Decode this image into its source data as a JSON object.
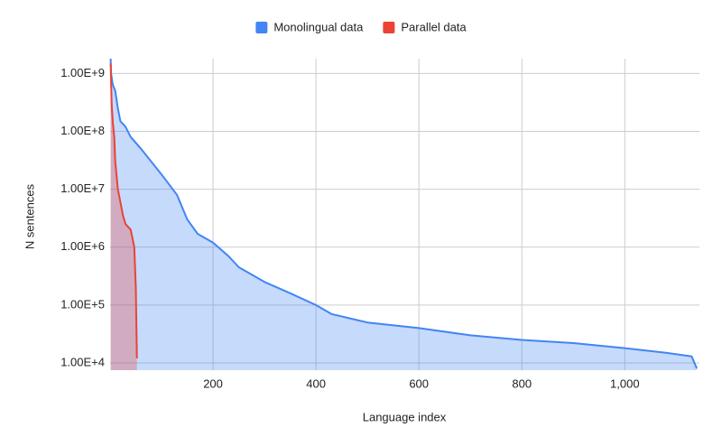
{
  "chart_data": {
    "type": "area",
    "log_scale_y": true,
    "grid": true,
    "legend_position": "top",
    "x_label": "Language index",
    "y_label": "N sentences",
    "xlim": [
      0,
      1145
    ],
    "xticks": [
      200,
      400,
      600,
      800,
      {
        "value": 1000,
        "label": "1,000"
      }
    ],
    "ylim": [
      7500,
      1800000000
    ],
    "yticks": [
      {
        "value": 10000,
        "label": "1.00E+4"
      },
      {
        "value": 100000,
        "label": "1.00E+5"
      },
      {
        "value": 1000000,
        "label": "1.00E+6"
      },
      {
        "value": 10000000,
        "label": "1.00E+7"
      },
      {
        "value": 100000000,
        "label": "1.00E+8"
      },
      {
        "value": 1000000000,
        "label": "1.00E+9"
      }
    ],
    "series": [
      {
        "name": "Monolingual data",
        "color": "#4285f4",
        "x": [
          1,
          2,
          5,
          10,
          15,
          20,
          30,
          40,
          60,
          80,
          100,
          130,
          150,
          170,
          200,
          230,
          250,
          300,
          350,
          400,
          430,
          500,
          600,
          700,
          800,
          900,
          1000,
          1080,
          1130,
          1140
        ],
        "values": [
          1800000000,
          1000000000,
          650000000,
          500000000,
          250000000,
          150000000,
          120000000,
          80000000,
          50000000,
          30000000,
          18000000,
          8000000,
          3000000,
          1700000,
          1200000,
          700000,
          450000,
          250000,
          160000,
          100000,
          70000,
          50000,
          40000,
          30000,
          25000,
          22000,
          18000,
          15000,
          13000,
          8000
        ]
      },
      {
        "name": "Parallel data",
        "color": "#ea4335",
        "x": [
          1,
          3,
          5,
          8,
          10,
          15,
          20,
          25,
          30,
          40,
          47,
          50,
          52
        ],
        "values": [
          1500000000,
          300000000,
          150000000,
          80000000,
          30000000,
          10000000,
          6000000,
          3500000,
          2500000,
          2000000,
          1000000,
          200000,
          12000
        ]
      }
    ]
  }
}
